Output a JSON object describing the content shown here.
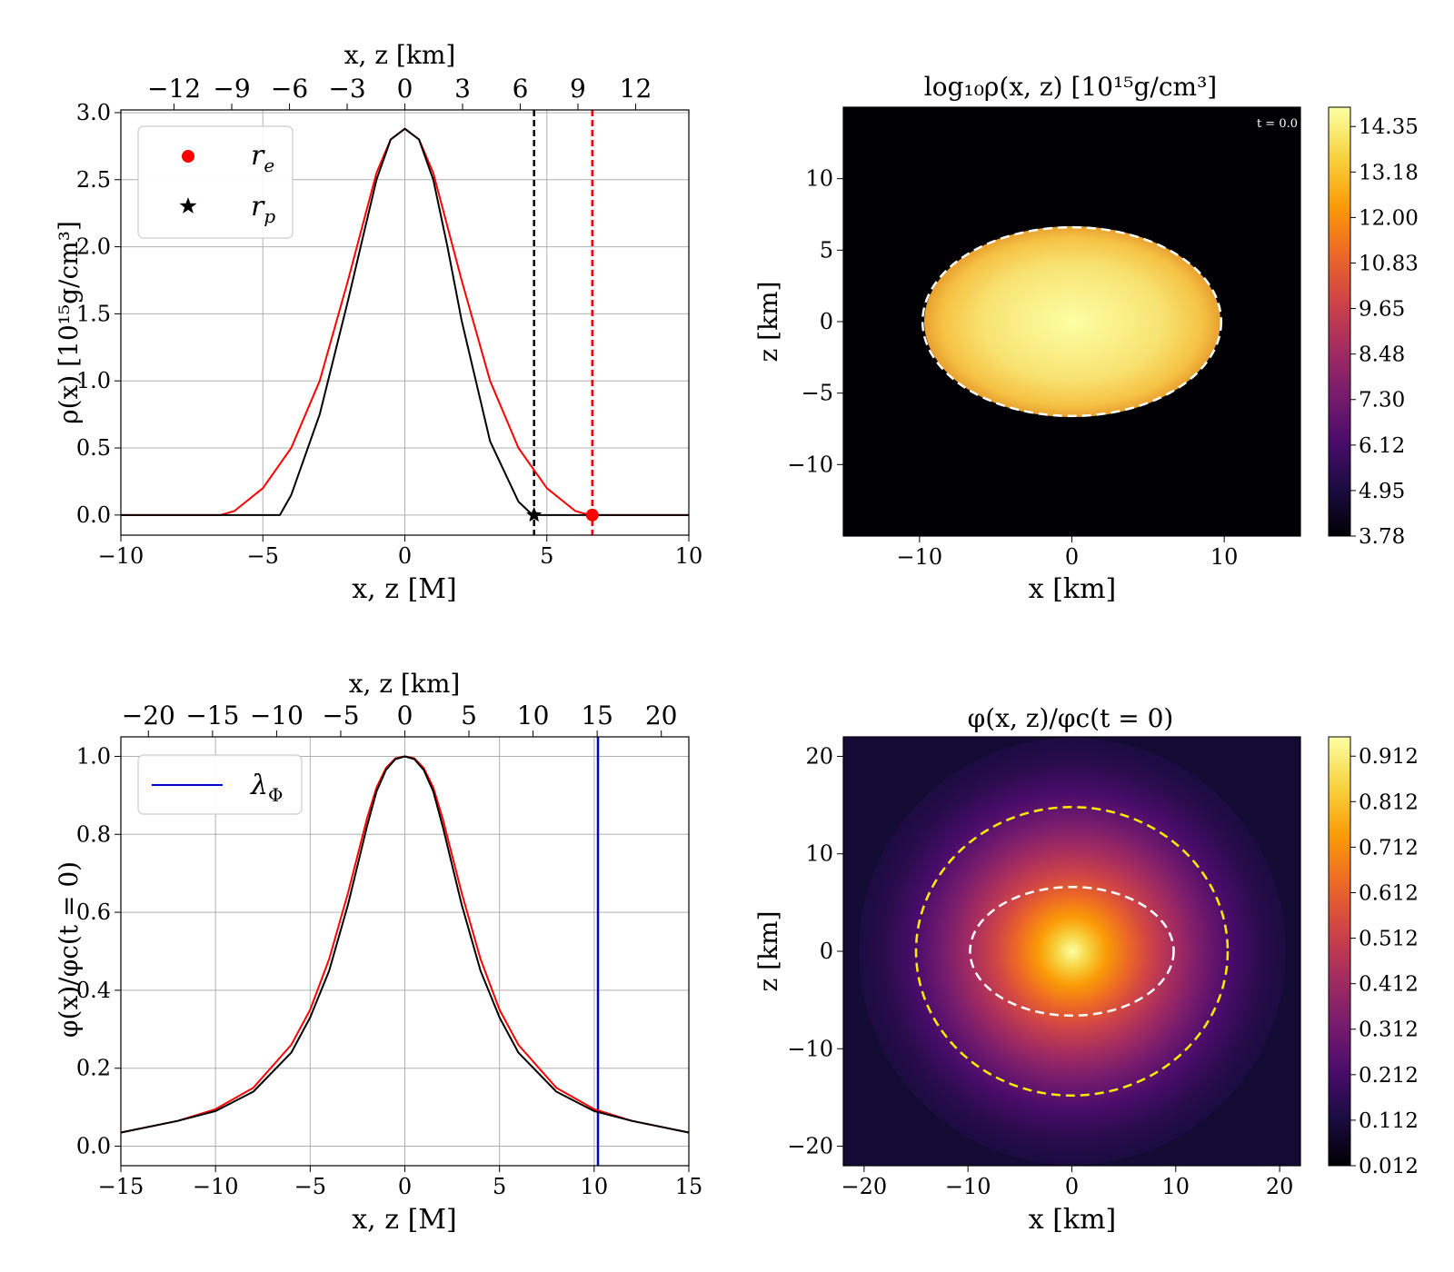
{
  "colors": {
    "red": "#ff0000",
    "black": "#000000",
    "blue": "#0000cc",
    "white_dashed": "#ffffff",
    "yellow_dashed": "#ffee00",
    "inferno": [
      "#000004",
      "#1b0c41",
      "#4a0c6b",
      "#781c6d",
      "#a52c60",
      "#cf4446",
      "#ed6925",
      "#fb9b06",
      "#f7d13d",
      "#fcffa4"
    ]
  },
  "chart_data": [
    {
      "id": "rho_profile",
      "type": "line",
      "title": "",
      "xlabel": "x, z [M]",
      "ylabel": "ρ(x) [10¹⁵g/cm³]",
      "top_xlabel": "x, z [km]",
      "xlim": [
        -10,
        10
      ],
      "ylim": [
        -0.15,
        3.02
      ],
      "grid": true,
      "x_ticks": [
        "−10",
        "−5",
        "0",
        "5",
        "10"
      ],
      "y_ticks": [
        "0.0",
        "0.5",
        "1.0",
        "1.5",
        "2.0",
        "2.5",
        "3.0"
      ],
      "top_ticks": [
        "−12",
        "−9",
        "−6",
        "−3",
        "0",
        "3",
        "6",
        "9",
        "12"
      ],
      "legend_position": "upper-left",
      "legend": [
        {
          "label": "r",
          "sub": "e",
          "marker": "circle",
          "color": "#ff0000"
        },
        {
          "label": "r",
          "sub": "p",
          "marker": "star",
          "color": "#000000"
        }
      ],
      "series": [
        {
          "color": "#ff0000",
          "x": [
            -10,
            -7,
            -6.5,
            -6,
            -5,
            -4,
            -3,
            -2,
            -1.5,
            -1,
            -0.5,
            0,
            0.5,
            1,
            1.5,
            2,
            3,
            4,
            5,
            6,
            6.5,
            7,
            10
          ],
          "y": [
            0,
            0,
            0,
            0.03,
            0.2,
            0.5,
            1.0,
            1.75,
            2.15,
            2.55,
            2.8,
            2.88,
            2.8,
            2.55,
            2.15,
            1.75,
            1.0,
            0.5,
            0.2,
            0.03,
            0,
            0,
            0
          ]
        },
        {
          "color": "#000000",
          "x": [
            -10,
            -5,
            -4.4,
            -4,
            -3,
            -2,
            -1.5,
            -1,
            -0.5,
            0,
            0.5,
            1,
            1.5,
            2,
            3,
            4,
            4.5,
            5,
            10
          ],
          "y": [
            0,
            0,
            0,
            0.15,
            0.75,
            1.6,
            2.05,
            2.5,
            2.8,
            2.88,
            2.8,
            2.5,
            2.0,
            1.45,
            0.55,
            0.1,
            0,
            0,
            0
          ]
        }
      ],
      "vlines": [
        {
          "x": 4.55,
          "color": "#000000",
          "dashed": true
        },
        {
          "x": 6.6,
          "color": "#ff0000",
          "dashed": true
        }
      ],
      "markers": [
        {
          "x": 4.55,
          "y": 0,
          "shape": "star",
          "color": "#000000"
        },
        {
          "x": 6.6,
          "y": 0,
          "shape": "circle",
          "color": "#ff0000"
        }
      ]
    },
    {
      "id": "rho_map",
      "type": "heatmap",
      "title": "log₁₀ρ(x, z) [10¹⁵g/cm³]",
      "xlabel": "x [km]",
      "ylabel": "z [km]",
      "time_label": "t = 0.0",
      "xlim": [
        -15,
        15
      ],
      "ylim": [
        -15,
        15
      ],
      "x_ticks": [
        "−10",
        "0",
        "10"
      ],
      "y_ticks": [
        "10",
        "5",
        "0",
        "−5",
        "−10"
      ],
      "colorbar_ticks": [
        "14.35",
        "13.18",
        "12.00",
        "10.83",
        "9.65",
        "8.48",
        "7.30",
        "6.12",
        "4.95",
        "3.78"
      ],
      "ellipses": [
        {
          "rx_km": 9.8,
          "rz_km": 6.6,
          "color": "#ffffff",
          "dashed": true
        }
      ]
    },
    {
      "id": "phi_profile",
      "type": "line",
      "title": "",
      "xlabel": "x, z [M]",
      "ylabel": "φ(x)/φc(t = 0)",
      "top_xlabel": "x, z [km]",
      "xlim": [
        -15,
        15
      ],
      "ylim": [
        -0.05,
        1.05
      ],
      "grid": true,
      "x_ticks": [
        "−15",
        "−10",
        "−5",
        "0",
        "5",
        "10",
        "15"
      ],
      "y_ticks": [
        "0.0",
        "0.2",
        "0.4",
        "0.6",
        "0.8",
        "1.0"
      ],
      "top_ticks": [
        "−20",
        "−15",
        "−10",
        "−5",
        "0",
        "5",
        "10",
        "15",
        "20"
      ],
      "legend_position": "upper-left",
      "legend": [
        {
          "label": "λ",
          "sub": "Φ",
          "marker": "line",
          "color": "#0000cc"
        }
      ],
      "series": [
        {
          "color": "#ff0000",
          "x": [
            -15,
            -12,
            -10,
            -8,
            -6,
            -5,
            -4,
            -3,
            -2,
            -1.5,
            -1,
            -0.5,
            0,
            0.5,
            1,
            1.5,
            2,
            3,
            4,
            5,
            6,
            8,
            10,
            12,
            15
          ],
          "y": [
            0.035,
            0.065,
            0.095,
            0.15,
            0.26,
            0.35,
            0.48,
            0.65,
            0.84,
            0.92,
            0.97,
            0.995,
            1.0,
            0.995,
            0.97,
            0.92,
            0.84,
            0.65,
            0.48,
            0.35,
            0.26,
            0.15,
            0.095,
            0.065,
            0.035
          ]
        },
        {
          "color": "#000000",
          "x": [
            -15,
            -12,
            -10,
            -8,
            -6,
            -5,
            -4,
            -3,
            -2,
            -1.5,
            -1,
            -0.5,
            0,
            0.5,
            1,
            1.5,
            2,
            3,
            4,
            5,
            6,
            8,
            10,
            12,
            15
          ],
          "y": [
            0.035,
            0.065,
            0.09,
            0.14,
            0.24,
            0.33,
            0.45,
            0.62,
            0.82,
            0.91,
            0.965,
            0.993,
            1.0,
            0.993,
            0.965,
            0.91,
            0.82,
            0.62,
            0.45,
            0.33,
            0.24,
            0.14,
            0.09,
            0.065,
            0.035
          ]
        }
      ],
      "vlines": [
        {
          "x": 10.2,
          "color": "#0000cc",
          "dashed": false
        }
      ],
      "markers": []
    },
    {
      "id": "phi_map",
      "type": "heatmap",
      "title": "φ(x, z)/φc(t = 0)",
      "xlabel": "x [km]",
      "ylabel": "z [km]",
      "xlim": [
        -22,
        22
      ],
      "ylim": [
        -22,
        22
      ],
      "x_ticks": [
        "−20",
        "−10",
        "0",
        "10",
        "20"
      ],
      "y_ticks": [
        "20",
        "10",
        "0",
        "−10",
        "−20"
      ],
      "colorbar_ticks": [
        "0.912",
        "0.812",
        "0.712",
        "0.612",
        "0.512",
        "0.412",
        "0.312",
        "0.212",
        "0.112",
        "0.012"
      ],
      "ellipses": [
        {
          "rx_km": 15,
          "rz_km": 14.8,
          "color": "#ffee00",
          "dashed": true
        },
        {
          "rx_km": 9.8,
          "rz_km": 6.6,
          "color": "#ffffff",
          "dashed": true
        }
      ]
    }
  ]
}
